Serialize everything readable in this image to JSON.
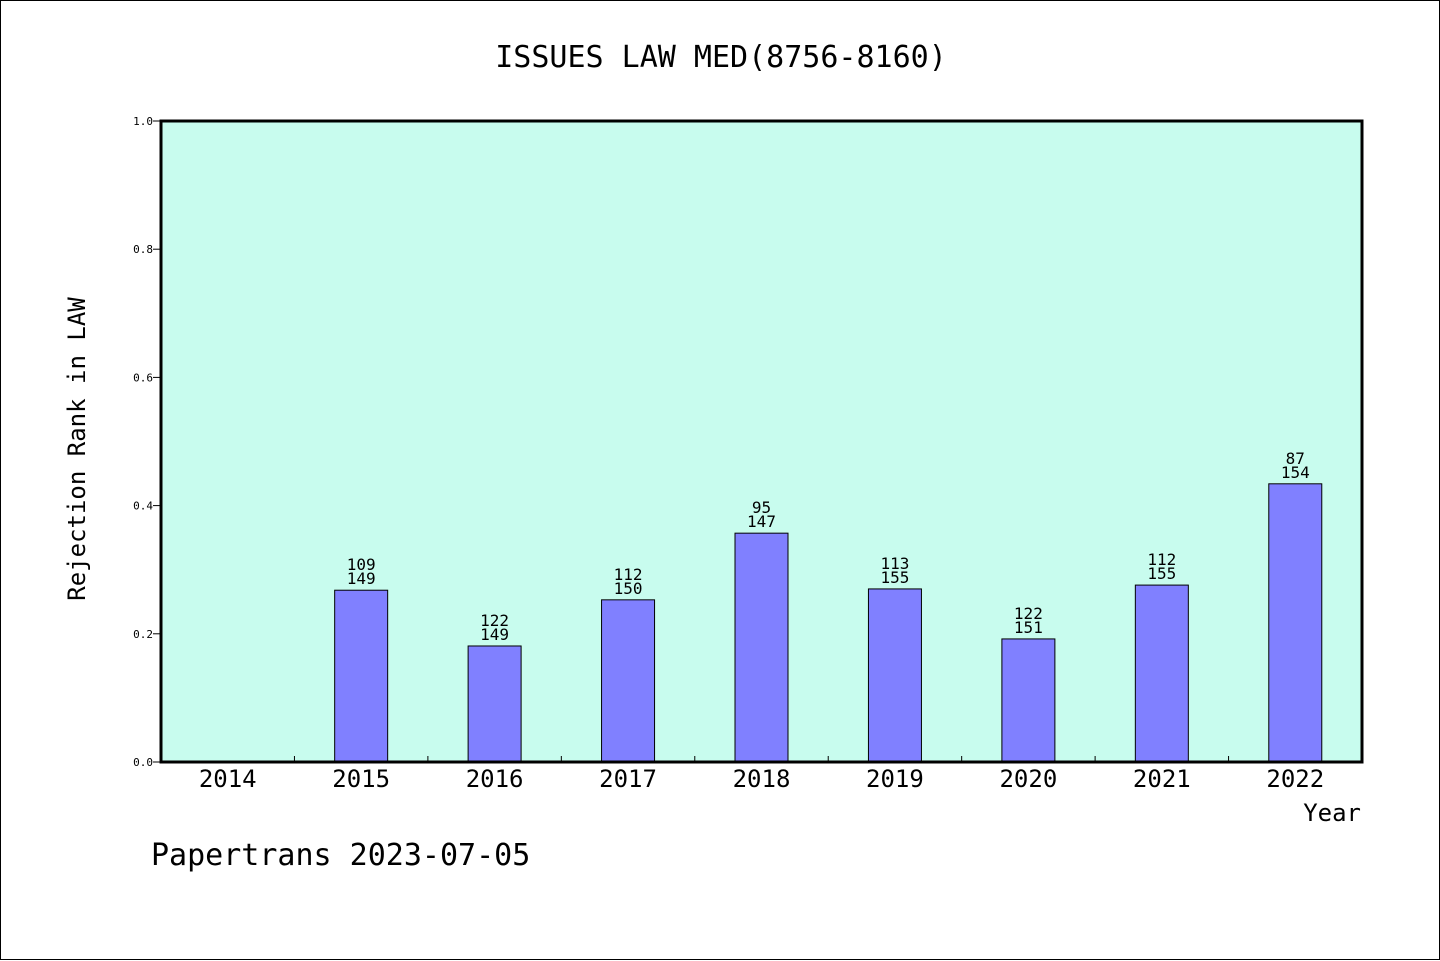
{
  "chart_data": {
    "type": "bar",
    "title": "ISSUES LAW MED(8756-8160)",
    "xlabel": "Year",
    "ylabel": "Rejection Rank in LAW",
    "ylim": [
      0.0,
      1.0
    ],
    "yticks": [
      "0.0",
      "0.2",
      "0.4",
      "0.6",
      "0.8",
      "1.0"
    ],
    "categories": [
      "2014",
      "2015",
      "2016",
      "2017",
      "2018",
      "2019",
      "2020",
      "2021",
      "2022"
    ],
    "values": [
      null,
      0.268,
      0.181,
      0.253,
      0.357,
      0.27,
      0.192,
      0.276,
      0.434
    ],
    "label_top": [
      "",
      "109",
      "122",
      "112",
      "95",
      "113",
      "122",
      "112",
      "87"
    ],
    "label_bottom": [
      "",
      "149",
      "149",
      "150",
      "147",
      "155",
      "151",
      "155",
      "154"
    ],
    "grid": false,
    "colors": {
      "plot_background": "#c8fcee",
      "bar_fill": "#8080ff",
      "bar_edge": "#000000"
    }
  },
  "footer": "Papertrans 2023-07-05"
}
